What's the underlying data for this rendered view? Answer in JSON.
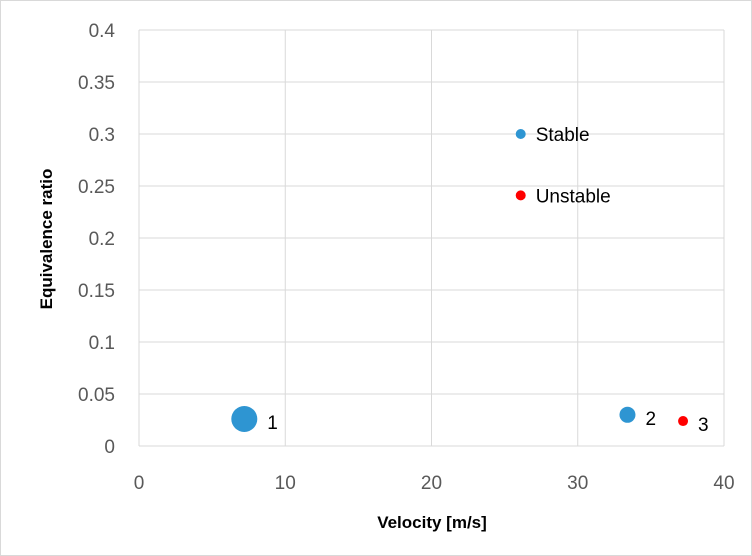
{
  "chart_data": {
    "type": "scatter",
    "title": "",
    "xlabel": "Velocity [m/s]",
    "ylabel": "Equivalence ratio",
    "xlim": [
      0,
      40
    ],
    "ylim": [
      0,
      0.4
    ],
    "xticks": [
      "0",
      "10",
      "20",
      "30",
      "40"
    ],
    "yticks": [
      "0",
      "0.05",
      "0.1",
      "0.15",
      "0.2",
      "0.25",
      "0.3",
      "0.35",
      "0.4"
    ],
    "grid": true,
    "legend": {
      "placement": "top-right",
      "entries": [
        {
          "name": "Stable",
          "color": "#2e95d2",
          "x": 26.1,
          "y": 0.3
        },
        {
          "name": "Unstable",
          "color": "#ff0000",
          "x": 26.1,
          "y": 0.241
        }
      ]
    },
    "series": [
      {
        "name": "Stable",
        "color": "#2e95d2",
        "points": [
          {
            "x": 7.2,
            "y": 0.026,
            "label": "1",
            "size": "large"
          },
          {
            "x": 33.4,
            "y": 0.03,
            "label": "2",
            "size": "medium"
          }
        ]
      },
      {
        "name": "Unstable",
        "color": "#ff0000",
        "points": [
          {
            "x": 37.2,
            "y": 0.024,
            "label": "3",
            "size": "small"
          }
        ]
      }
    ]
  }
}
